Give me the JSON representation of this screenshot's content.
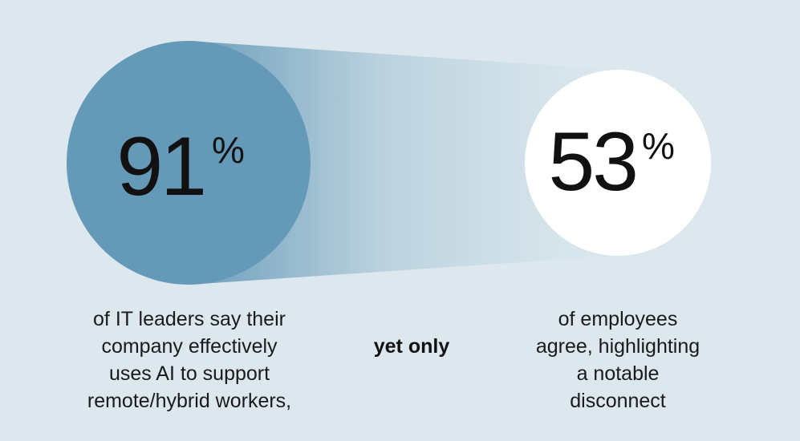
{
  "stats": [
    {
      "value": "91",
      "unit": "%",
      "caption": [
        "of IT leaders say their",
        "company effectively",
        "uses AI to support",
        "remote/hybrid workers,"
      ]
    },
    {
      "value": "53",
      "unit": "%",
      "caption": [
        "of employees",
        "agree, highlighting",
        "a notable",
        "disconnect"
      ]
    }
  ],
  "connector": "yet only"
}
